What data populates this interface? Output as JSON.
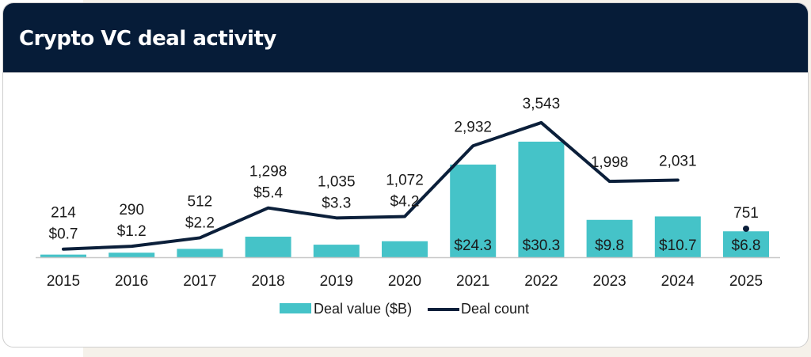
{
  "header": {
    "title": "Crypto VC deal activity"
  },
  "chart_data": {
    "type": "bar+line",
    "title": "Crypto VC deal activity",
    "categories": [
      "2015",
      "2016",
      "2017",
      "2018",
      "2019",
      "2020",
      "2021",
      "2022",
      "2023",
      "2024",
      "2025"
    ],
    "series": [
      {
        "name": "Deal value ($B)",
        "type": "bar",
        "color": "#45c3c8",
        "values": [
          0.7,
          1.2,
          2.2,
          5.4,
          3.3,
          4.2,
          24.3,
          30.3,
          9.8,
          10.7,
          6.8
        ],
        "labels": [
          "$0.7",
          "$1.2",
          "$2.2",
          "$5.4",
          "$3.3",
          "$4.2",
          "$24.3",
          "$30.3",
          "$9.8",
          "$10.7",
          "$6.8"
        ]
      },
      {
        "name": "Deal count",
        "type": "line",
        "color": "#0b1f3a",
        "values": [
          214,
          290,
          512,
          1298,
          1035,
          1072,
          2932,
          3543,
          1998,
          2031,
          751
        ],
        "labels": [
          "214",
          "290",
          "512",
          "1,298",
          "1,035",
          "1,072",
          "2,932",
          "3,543",
          "1,998",
          "2,031",
          "751"
        ]
      }
    ],
    "legend": "bottom-center",
    "grid": false
  }
}
